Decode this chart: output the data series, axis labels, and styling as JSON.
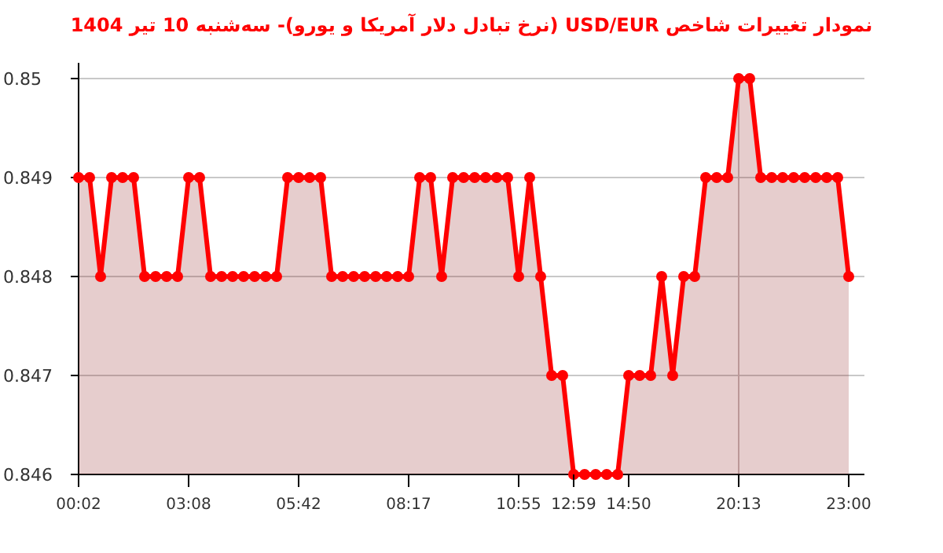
{
  "chart_data": {
    "type": "area",
    "title": "نمودار تغییرات شاخص USD/EUR (نرخ تبادل دلار آمریکا و یورو)- سه‌شنبه  10 تیر 1404",
    "categories": [
      "00:02",
      null,
      null,
      null,
      null,
      null,
      null,
      null,
      null,
      null,
      "03:08",
      null,
      null,
      null,
      null,
      null,
      null,
      null,
      null,
      null,
      "05:42",
      null,
      null,
      null,
      null,
      null,
      null,
      null,
      null,
      null,
      "08:17",
      null,
      null,
      null,
      null,
      null,
      null,
      null,
      null,
      null,
      "10:55",
      null,
      null,
      null,
      null,
      "12:59",
      null,
      null,
      null,
      null,
      "14:50",
      null,
      null,
      null,
      null,
      null,
      null,
      null,
      null,
      null,
      "20:13",
      null,
      null,
      null,
      null,
      null,
      null,
      null,
      null,
      null,
      "23:00"
    ],
    "series": [
      {
        "color": "#ff0000",
        "values": [
          0.849,
          0.849,
          0.848,
          0.849,
          0.849,
          0.849,
          0.848,
          0.848,
          0.848,
          0.848,
          0.849,
          0.849,
          0.848,
          0.848,
          0.848,
          0.848,
          0.848,
          0.848,
          0.848,
          0.849,
          0.849,
          0.849,
          0.849,
          0.848,
          0.848,
          0.848,
          0.848,
          0.848,
          0.848,
          0.848,
          0.848,
          0.849,
          0.849,
          0.848,
          0.849,
          0.849,
          0.849,
          0.849,
          0.849,
          0.849,
          0.848,
          0.849,
          0.848,
          0.847,
          0.847,
          0.846,
          0.846,
          0.846,
          0.846,
          0.846,
          0.847,
          0.847,
          0.847,
          0.848,
          0.847,
          0.848,
          0.848,
          0.849,
          0.849,
          0.849,
          0.85,
          0.85,
          0.849,
          0.849,
          0.849,
          0.849,
          0.849,
          0.849,
          0.849,
          0.849,
          0.848
        ]
      }
    ],
    "ylim": [
      0.846,
      0.85
    ],
    "yticks": [
      0.846,
      0.847,
      0.848,
      0.849,
      0.85
    ],
    "ref_lines": [
      {
        "axis": "x",
        "value": "20:13",
        "color": "#c8bcbc"
      }
    ],
    "grid": "y",
    "marker": "circle",
    "line_style": "solid"
  }
}
